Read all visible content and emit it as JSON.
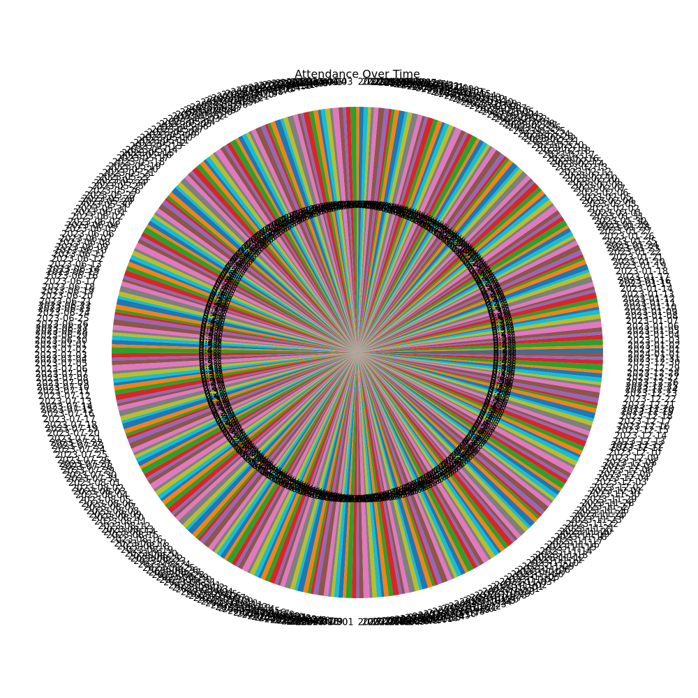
{
  "chart_data": {
    "type": "pie",
    "title": "Attendance Over Time",
    "colors": [
      "#1f77b4",
      "#ff7f0e",
      "#2ca02c",
      "#d62728",
      "#9467bd",
      "#8c564b",
      "#e377c2",
      "#7f7f7f",
      "#bcbd22",
      "#17becf"
    ],
    "categories": [
      "2023-01-01",
      "2023-01-02",
      "2023-01-03",
      "2023-01-04",
      "2023-01-05",
      "2023-01-06",
      "2023-01-07",
      "2023-01-08",
      "2023-01-09",
      "2023-01-10",
      "2023-01-11",
      "2023-01-12",
      "2023-01-13",
      "2023-01-14",
      "2023-01-15",
      "2023-01-16",
      "2023-01-17",
      "2023-01-18",
      "2023-01-19",
      "2023-01-20",
      "2023-01-21",
      "2023-01-22",
      "2023-01-23",
      "2023-01-24",
      "2023-01-25",
      "2023-01-26",
      "2023-01-27",
      "2023-01-28",
      "2023-01-29",
      "2023-01-30",
      "2023-01-31",
      "2023-02-01",
      "2023-02-02",
      "2023-02-03",
      "2023-02-04",
      "2023-02-05",
      "2023-02-06",
      "2023-02-07",
      "2023-02-08",
      "2023-02-09",
      "2023-02-10",
      "2023-02-11",
      "2023-02-12",
      "2023-02-13",
      "2023-02-14",
      "2023-02-15",
      "2023-02-16",
      "2023-02-17",
      "2023-02-18",
      "2023-02-19",
      "2023-02-20",
      "2023-02-21",
      "2023-02-22",
      "2023-02-23",
      "2023-02-24",
      "2023-02-25",
      "2023-02-26",
      "2023-02-27",
      "2023-02-28",
      "2023-03-01",
      "2023-03-02",
      "2023-03-03",
      "2023-03-04",
      "2023-03-05",
      "2023-03-06",
      "2023-03-07",
      "2023-03-08",
      "2023-03-09",
      "2023-03-10",
      "2023-03-11",
      "2023-03-12",
      "2023-03-13",
      "2023-03-14",
      "2023-03-15",
      "2023-03-16",
      "2023-03-17",
      "2023-03-18",
      "2023-03-19",
      "2023-03-20",
      "2023-03-21",
      "2023-03-22",
      "2023-03-23",
      "2023-03-24",
      "2023-03-25",
      "2023-03-26",
      "2023-03-27",
      "2023-03-28",
      "2023-03-29",
      "2023-03-30",
      "2023-03-31",
      "2023-04-01",
      "2023-04-02",
      "2023-04-03",
      "2023-04-04",
      "2023-04-05",
      "2023-04-06",
      "2023-04-07",
      "2023-04-08",
      "2023-04-09",
      "2023-04-10",
      "2023-04-11",
      "2023-04-12",
      "2023-04-13",
      "2023-04-14",
      "2023-04-15",
      "2023-04-16",
      "2023-04-17",
      "2023-04-18",
      "2023-04-19",
      "2023-04-20",
      "2023-04-21",
      "2023-04-22",
      "2023-04-23",
      "2023-04-24",
      "2023-04-25",
      "2023-04-26",
      "2023-04-27",
      "2023-04-28",
      "2023-04-29",
      "2023-04-30",
      "2023-05-01",
      "2023-05-02",
      "2023-05-03",
      "2023-05-04",
      "2023-05-05",
      "2023-05-06",
      "2023-05-07",
      "2023-05-08",
      "2023-05-09",
      "2023-05-10",
      "2023-05-11",
      "2023-05-12",
      "2023-05-13",
      "2023-05-14",
      "2023-05-15",
      "2023-05-16",
      "2023-05-17",
      "2023-05-18",
      "2023-05-19",
      "2023-05-20",
      "2023-05-21",
      "2023-05-22",
      "2023-05-23",
      "2023-05-24",
      "2023-05-25",
      "2023-05-26",
      "2023-05-27",
      "2023-05-28",
      "2023-05-29",
      "2023-05-30",
      "2023-05-31",
      "2023-06-01",
      "2023-06-02",
      "2023-06-03",
      "2023-06-04",
      "2023-06-05",
      "2023-06-06",
      "2023-06-07",
      "2023-06-08",
      "2023-06-09",
      "2023-06-10",
      "2023-06-11",
      "2023-06-12",
      "2023-06-13",
      "2023-06-14",
      "2023-06-15",
      "2023-06-16",
      "2023-06-17",
      "2023-06-18",
      "2023-06-19",
      "2023-06-20",
      "2023-06-21",
      "2023-06-22",
      "2023-06-23",
      "2023-06-24",
      "2023-06-25",
      "2023-06-26",
      "2023-06-27",
      "2023-06-28",
      "2023-06-29",
      "2023-06-30",
      "2023-07-01",
      "2023-07-02",
      "2023-07-03",
      "2023-07-04",
      "2023-07-05",
      "2023-07-06",
      "2023-07-07",
      "2023-07-08",
      "2023-07-09",
      "2023-07-10",
      "2023-07-11",
      "2023-07-12",
      "2023-07-13",
      "2023-07-14",
      "2023-07-15",
      "2023-07-16",
      "2023-07-17",
      "2023-07-18",
      "2023-07-19",
      "2023-07-20",
      "2023-07-21",
      "2023-07-22",
      "2023-07-23",
      "2023-07-24",
      "2023-07-25",
      "2023-07-26",
      "2023-07-27",
      "2023-07-28",
      "2023-07-29",
      "2023-07-30",
      "2023-07-31",
      "2023-08-01",
      "2023-08-02",
      "2023-08-03",
      "2023-08-04",
      "2023-08-05",
      "2023-08-06",
      "2023-08-07",
      "2023-08-08",
      "2023-08-09",
      "2023-08-10",
      "2023-08-11",
      "2023-08-12",
      "2023-08-13",
      "2023-08-14",
      "2023-08-15",
      "2023-08-16",
      "2023-08-17",
      "2023-08-18",
      "2023-08-19",
      "2023-08-20",
      "2023-08-21",
      "2023-08-22",
      "2023-08-23",
      "2023-08-24",
      "2023-08-25",
      "2023-08-26",
      "2023-08-27",
      "2023-08-28",
      "2023-08-29",
      "2023-08-30",
      "2023-08-31",
      "2023-09-01",
      "2023-09-02",
      "2023-09-03",
      "2023-09-04",
      "2023-09-05",
      "2023-09-06",
      "2023-09-07",
      "2023-09-08",
      "2023-09-09",
      "2023-09-10",
      "2023-09-11",
      "2023-09-12",
      "2023-09-13",
      "2023-09-14",
      "2023-09-15",
      "2023-09-16",
      "2023-09-17",
      "2023-09-18",
      "2023-09-19",
      "2023-09-20",
      "2023-09-21",
      "2023-09-22",
      "2023-09-23",
      "2023-09-24",
      "2023-09-25",
      "2023-09-26",
      "2023-09-27",
      "2023-09-28",
      "2023-09-29",
      "2023-09-30",
      "2023-10-01",
      "2023-10-02",
      "2023-10-03",
      "2023-10-04",
      "2023-10-05",
      "2023-10-06",
      "2023-10-07",
      "2023-10-08",
      "2023-10-09",
      "2023-10-10",
      "2023-10-11",
      "2023-10-12",
      "2023-10-13",
      "2023-10-14",
      "2023-10-15",
      "2023-10-16",
      "2023-10-17",
      "2023-10-18",
      "2023-10-19",
      "2023-10-20",
      "2023-10-21",
      "2023-10-22",
      "2023-10-23",
      "2023-10-24",
      "2023-10-25",
      "2023-10-26",
      "2023-10-27",
      "2023-10-28",
      "2023-10-29",
      "2023-10-30",
      "2023-10-31",
      "2023-11-01",
      "2023-11-02",
      "2023-11-03",
      "2023-11-04",
      "2023-11-05",
      "2023-11-06",
      "2023-11-07",
      "2023-11-08",
      "2023-11-09",
      "2023-11-10",
      "2023-11-11",
      "2023-11-12",
      "2023-11-13",
      "2023-11-14",
      "2023-11-15",
      "2023-11-16",
      "2023-11-17",
      "2023-11-18",
      "2023-11-19",
      "2023-11-20",
      "2023-11-21",
      "2023-11-22",
      "2023-11-23",
      "2023-11-24",
      "2023-11-25",
      "2023-11-26",
      "2023-11-27",
      "2023-11-28",
      "2023-11-29",
      "2023-11-30",
      "2023-12-01",
      "2023-12-02",
      "2023-12-03",
      "2023-12-04",
      "2023-12-05",
      "2023-12-06",
      "2023-12-07",
      "2023-12-08",
      "2023-12-09",
      "2023-12-10",
      "2023-12-11",
      "2023-12-12",
      "2023-12-13",
      "2023-12-14",
      "2023-12-15",
      "2023-12-16",
      "2023-12-17",
      "2023-12-18",
      "2023-12-19",
      "2023-12-20",
      "2023-12-21",
      "2023-12-22",
      "2023-12-23",
      "2023-12-24",
      "2023-12-25",
      "2023-12-26",
      "2023-12-27",
      "2023-12-28",
      "2023-12-29",
      "2023-12-30",
      "2023-12-31",
      "2024-01-01"
    ],
    "values": [
      0.3,
      0.2,
      0.4,
      0.3,
      0.2,
      0.3,
      0.4,
      0.2,
      0.3,
      0.3,
      0.2,
      0.3,
      0.3,
      0.4,
      0.2,
      0.2,
      0.3,
      0.4,
      0.3,
      0.2,
      0.4,
      0.3,
      0.2,
      0.2,
      0.3,
      0.4,
      0.3,
      0.2,
      0.2,
      0.3,
      0.3,
      0.2,
      0.4,
      0.3,
      0.2,
      0.3,
      0.4,
      0.2,
      0.3,
      0.3,
      0.2,
      0.3,
      0.3,
      0.4,
      0.2,
      0.2,
      0.3,
      0.4,
      0.3,
      0.2,
      0.4,
      0.3,
      0.2,
      0.2,
      0.3,
      0.4,
      0.3,
      0.2,
      0.2,
      0.3,
      0.3,
      0.2,
      0.4,
      0.3,
      0.2,
      0.3,
      0.4,
      0.2,
      0.3,
      0.3,
      0.2,
      0.3,
      0.3,
      0.4,
      0.2,
      0.2,
      0.3,
      0.4,
      0.3,
      0.2,
      0.4,
      0.3,
      0.2,
      0.2,
      0.3,
      0.4,
      0.3,
      0.2,
      0.2,
      0.3,
      0.3,
      0.2,
      0.4,
      0.3,
      0.2,
      0.3,
      0.4,
      0.2,
      0.3,
      0.3,
      0.2,
      0.3,
      0.3,
      0.4,
      0.2,
      0.2,
      0.3,
      0.4,
      0.3,
      0.2,
      0.4,
      0.3,
      0.2,
      0.2,
      0.3,
      0.4,
      0.3,
      0.2,
      0.2,
      0.3,
      0.3,
      0.2,
      0.4,
      0.3,
      0.2,
      0.3,
      0.4,
      0.2,
      0.3,
      0.3,
      0.2,
      0.3,
      0.3,
      0.4,
      0.2,
      0.2,
      0.3,
      0.4,
      0.3,
      0.2,
      0.4,
      0.3,
      0.2,
      0.2,
      0.3,
      0.4,
      0.3,
      0.2,
      0.2,
      0.3,
      0.3,
      0.2,
      0.4,
      0.3,
      0.2,
      0.3,
      0.4,
      0.2,
      0.3,
      0.3,
      0.2,
      0.3,
      0.3,
      0.4,
      0.2,
      0.2,
      0.3,
      0.4,
      0.3,
      0.2,
      0.4,
      0.3,
      0.2,
      0.2,
      0.3,
      0.4,
      0.3,
      0.2,
      0.2,
      0.3,
      0.3,
      0.2,
      0.4,
      0.3,
      0.2,
      0.3,
      0.4,
      0.2,
      0.3,
      0.3,
      0.2,
      0.3,
      0.3,
      0.4,
      0.2,
      0.2,
      0.3,
      0.4,
      0.3,
      0.2,
      0.4,
      0.3,
      0.2,
      0.2,
      0.3,
      0.4,
      0.3,
      0.2,
      0.2,
      0.3,
      0.3,
      0.2,
      0.4,
      0.3,
      0.2,
      0.3,
      0.4,
      0.2,
      0.3,
      0.3,
      0.2,
      0.3,
      0.3,
      0.4,
      0.2,
      0.2,
      0.3,
      0.4,
      0.3,
      0.2,
      0.4,
      0.3,
      0.2,
      0.2,
      0.3,
      0.4,
      0.3,
      0.2,
      0.2,
      0.3,
      0.3,
      0.2,
      0.4,
      0.3,
      0.2,
      0.3,
      0.4,
      0.2,
      0.3,
      0.3,
      0.2,
      0.3,
      0.3,
      0.4,
      0.2,
      0.2,
      0.3,
      0.4,
      0.3,
      0.2,
      0.4,
      0.3,
      0.2,
      0.2,
      0.3,
      0.4,
      0.3,
      0.2,
      0.2,
      0.3,
      0.3,
      0.2,
      0.4,
      0.3,
      0.2,
      0.3,
      0.4,
      0.2,
      0.3,
      0.3,
      0.2,
      0.3,
      0.3,
      0.4,
      0.2,
      0.2,
      0.3,
      0.4,
      0.3,
      0.2,
      0.4,
      0.3,
      0.2,
      0.2,
      0.3,
      0.4,
      0.3,
      0.2,
      0.2,
      0.3,
      0.3,
      0.2,
      0.4,
      0.3,
      0.2,
      0.3,
      0.4,
      0.2,
      0.3,
      0.3,
      0.2,
      0.3,
      0.3,
      0.4,
      0.2,
      0.2,
      0.3,
      0.4,
      0.3,
      0.2,
      0.4,
      0.3,
      0.2,
      0.2,
      0.3,
      0.4,
      0.3,
      0.2,
      0.2,
      0.3,
      0.3,
      0.2,
      0.4,
      0.3,
      0.2,
      0.3,
      0.4,
      0.2,
      0.3,
      0.3,
      0.2,
      0.3,
      0.3,
      0.4,
      0.2,
      0.2,
      0.3,
      0.4,
      0.3,
      0.2,
      0.4,
      0.3,
      0.2,
      0.2,
      0.3,
      0.4,
      0.3,
      0.2,
      0.2,
      0.3,
      0.3,
      0.2,
      0.4,
      0.3,
      0.2,
      0.3
    ],
    "value_labels": [
      "0.3%",
      "0.2%",
      "0.4%",
      "0.3%",
      "0.2%",
      "0.3%",
      "0.4%",
      "0.2%",
      "0.3%",
      "0.3%",
      "0.2%",
      "0.3%",
      "0.3%",
      "0.4%",
      "0.2%",
      "0.2%",
      "0.3%",
      "0.4%",
      "0.3%",
      "0.2%",
      "0.4%",
      "0.3%",
      "0.2%",
      "0.2%",
      "0.3%",
      "0.4%",
      "0.3%",
      "0.2%",
      "0.2%",
      "0.3%",
      "0.3%",
      "0.2%",
      "0.4%",
      "0.3%",
      "0.2%",
      "0.3%",
      "0.4%",
      "0.2%",
      "0.3%",
      "0.3%",
      "0.2%",
      "0.3%",
      "0.3%",
      "0.4%",
      "0.2%",
      "0.2%",
      "0.3%",
      "0.4%",
      "0.3%",
      "0.2%",
      "0.4%",
      "0.3%",
      "0.2%",
      "0.2%",
      "0.3%",
      "0.4%",
      "0.3%",
      "0.2%",
      "0.2%",
      "0.3%",
      "0.3%",
      "0.2%",
      "0.4%",
      "0.3%",
      "0.2%",
      "0.3%",
      "0.4%",
      "0.2%",
      "0.3%",
      "0.3%",
      "0.2%",
      "0.3%",
      "0.3%",
      "0.4%",
      "0.2%",
      "0.2%",
      "0.3%",
      "0.4%",
      "0.3%",
      "0.2%",
      "0.4%",
      "0.3%",
      "0.2%",
      "0.2%",
      "0.3%",
      "0.4%",
      "0.3%",
      "0.2%",
      "0.2%",
      "0.3%",
      "0.3%",
      "0.2%",
      "0.4%",
      "0.3%",
      "0.2%",
      "0.3%",
      "0.4%",
      "0.2%",
      "0.3%",
      "0.3%",
      "0.2%",
      "0.3%",
      "0.3%",
      "0.4%",
      "0.2%",
      "0.2%",
      "0.3%",
      "0.4%",
      "0.3%",
      "0.2%",
      "0.4%",
      "0.3%",
      "0.2%",
      "0.2%",
      "0.3%",
      "0.4%",
      "0.3%",
      "0.2%",
      "0.2%",
      "0.3%",
      "0.3%",
      "0.2%",
      "0.4%",
      "0.3%",
      "0.2%",
      "0.3%",
      "0.4%",
      "0.2%",
      "0.3%",
      "0.3%",
      "0.2%",
      "0.3%",
      "0.3%",
      "0.4%",
      "0.2%",
      "0.2%",
      "0.3%",
      "0.4%",
      "0.3%",
      "0.2%",
      "0.4%",
      "0.3%",
      "0.2%",
      "0.2%",
      "0.3%",
      "0.4%",
      "0.3%",
      "0.2%",
      "0.2%",
      "0.3%",
      "0.3%",
      "0.2%",
      "0.4%",
      "0.3%",
      "0.2%",
      "0.3%",
      "0.4%",
      "0.2%",
      "0.3%",
      "0.3%",
      "0.2%",
      "0.3%",
      "0.3%",
      "0.4%",
      "0.2%",
      "0.2%",
      "0.3%",
      "0.4%",
      "0.3%",
      "0.2%",
      "0.4%",
      "0.3%",
      "0.2%",
      "0.2%",
      "0.3%",
      "0.4%",
      "0.3%",
      "0.2%",
      "0.2%",
      "0.3%",
      "0.3%",
      "0.2%",
      "0.4%",
      "0.3%",
      "0.2%",
      "0.3%",
      "0.4%",
      "0.2%",
      "0.3%",
      "0.3%",
      "0.2%",
      "0.3%",
      "0.3%",
      "0.4%",
      "0.2%",
      "0.2%",
      "0.3%",
      "0.4%",
      "0.3%",
      "0.2%",
      "0.4%",
      "0.3%",
      "0.2%",
      "0.2%",
      "0.3%",
      "0.4%",
      "0.3%",
      "0.2%",
      "0.2%",
      "0.3%",
      "0.3%",
      "0.2%",
      "0.4%",
      "0.3%",
      "0.2%",
      "0.3%",
      "0.4%",
      "0.2%",
      "0.3%",
      "0.3%",
      "0.2%",
      "0.3%",
      "0.3%",
      "0.4%",
      "0.2%",
      "0.2%",
      "0.3%",
      "0.4%",
      "0.3%",
      "0.2%",
      "0.4%",
      "0.3%",
      "0.2%",
      "0.2%",
      "0.3%",
      "0.4%",
      "0.3%",
      "0.2%",
      "0.2%",
      "0.3%",
      "0.3%",
      "0.2%",
      "0.4%",
      "0.3%",
      "0.2%",
      "0.3%",
      "0.4%",
      "0.2%",
      "0.3%",
      "0.3%",
      "0.2%",
      "0.3%",
      "0.3%",
      "0.4%",
      "0.2%",
      "0.2%",
      "0.3%",
      "0.4%",
      "0.3%",
      "0.2%",
      "0.4%",
      "0.3%",
      "0.2%",
      "0.2%",
      "0.3%",
      "0.4%",
      "0.3%",
      "0.2%",
      "0.2%",
      "0.3%",
      "0.3%",
      "0.2%",
      "0.4%",
      "0.3%",
      "0.2%",
      "0.3%",
      "0.4%",
      "0.2%",
      "0.3%",
      "0.3%",
      "0.2%",
      "0.3%",
      "0.3%",
      "0.4%",
      "0.2%",
      "0.2%",
      "0.3%",
      "0.4%",
      "0.3%",
      "0.2%",
      "0.4%",
      "0.3%",
      "0.2%",
      "0.2%",
      "0.3%",
      "0.4%",
      "0.3%",
      "0.2%",
      "0.2%",
      "0.3%",
      "0.3%",
      "0.2%",
      "0.4%",
      "0.3%",
      "0.2%",
      "0.3%",
      "0.4%",
      "0.2%",
      "0.3%",
      "0.3%",
      "0.2%",
      "0.3%",
      "0.3%",
      "0.4%",
      "0.2%",
      "0.2%",
      "0.3%",
      "0.4%",
      "0.3%",
      "0.2%",
      "0.4%",
      "0.3%",
      "0.2%",
      "0.2%",
      "0.3%",
      "0.4%",
      "0.3%",
      "0.2%",
      "0.2%",
      "0.3%",
      "0.3%",
      "0.2%",
      "0.4%",
      "0.3%",
      "0.2%",
      "0.3%",
      "0.4%",
      "0.2%",
      "0.3%",
      "0.3%",
      "0.2%",
      "0.3%",
      "0.3%",
      "0.4%",
      "0.2%",
      "0.2%",
      "0.3%",
      "0.4%",
      "0.3%",
      "0.2%",
      "0.4%",
      "0.3%",
      "0.2%",
      "0.2%",
      "0.3%",
      "0.4%",
      "0.3%",
      "0.2%",
      "0.2%",
      "0.3%",
      "0.3%",
      "0.2%",
      "0.4%",
      "0.3%",
      "0.2%",
      "0.3%"
    ]
  }
}
